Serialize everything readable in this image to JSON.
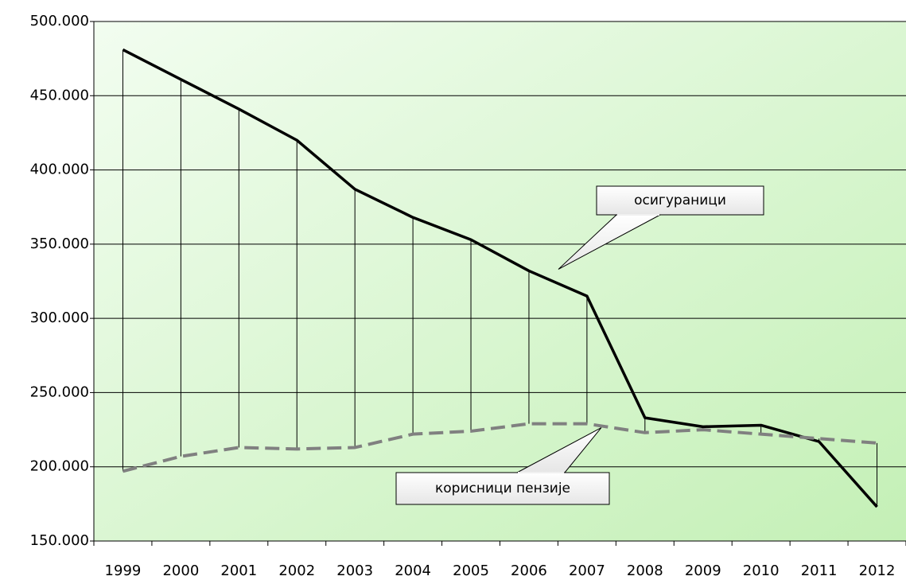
{
  "chart_data": {
    "type": "line",
    "categories": [
      "1999",
      "2000",
      "2001",
      "2002",
      "2003",
      "2004",
      "2005",
      "2006",
      "2007",
      "2008",
      "2009",
      "2010",
      "2011",
      "2012"
    ],
    "series": [
      {
        "name": "осигураници",
        "color": "#000000",
        "style": "solid",
        "values": [
          481000,
          461000,
          441000,
          420000,
          387000,
          368000,
          353000,
          332000,
          315000,
          233000,
          227000,
          228000,
          217000,
          173000
        ]
      },
      {
        "name": "корисници пензије",
        "color": "#808080",
        "style": "dashed",
        "values": [
          197000,
          207000,
          213000,
          212000,
          213000,
          222000,
          224000,
          229000,
          229000,
          223000,
          225000,
          222000,
          219000,
          216000
        ]
      }
    ],
    "ylim": [
      150000,
      500000
    ],
    "yticks": [
      {
        "value": 150000,
        "label": "150.000"
      },
      {
        "value": 200000,
        "label": "200.000"
      },
      {
        "value": 250000,
        "label": "250.000"
      },
      {
        "value": 300000,
        "label": "300.000"
      },
      {
        "value": 350000,
        "label": "350.000"
      },
      {
        "value": 400000,
        "label": "400.000"
      },
      {
        "value": 450000,
        "label": "450.000"
      },
      {
        "value": 500000,
        "label": "500.000"
      }
    ],
    "grid": true,
    "drop_lines": true
  }
}
